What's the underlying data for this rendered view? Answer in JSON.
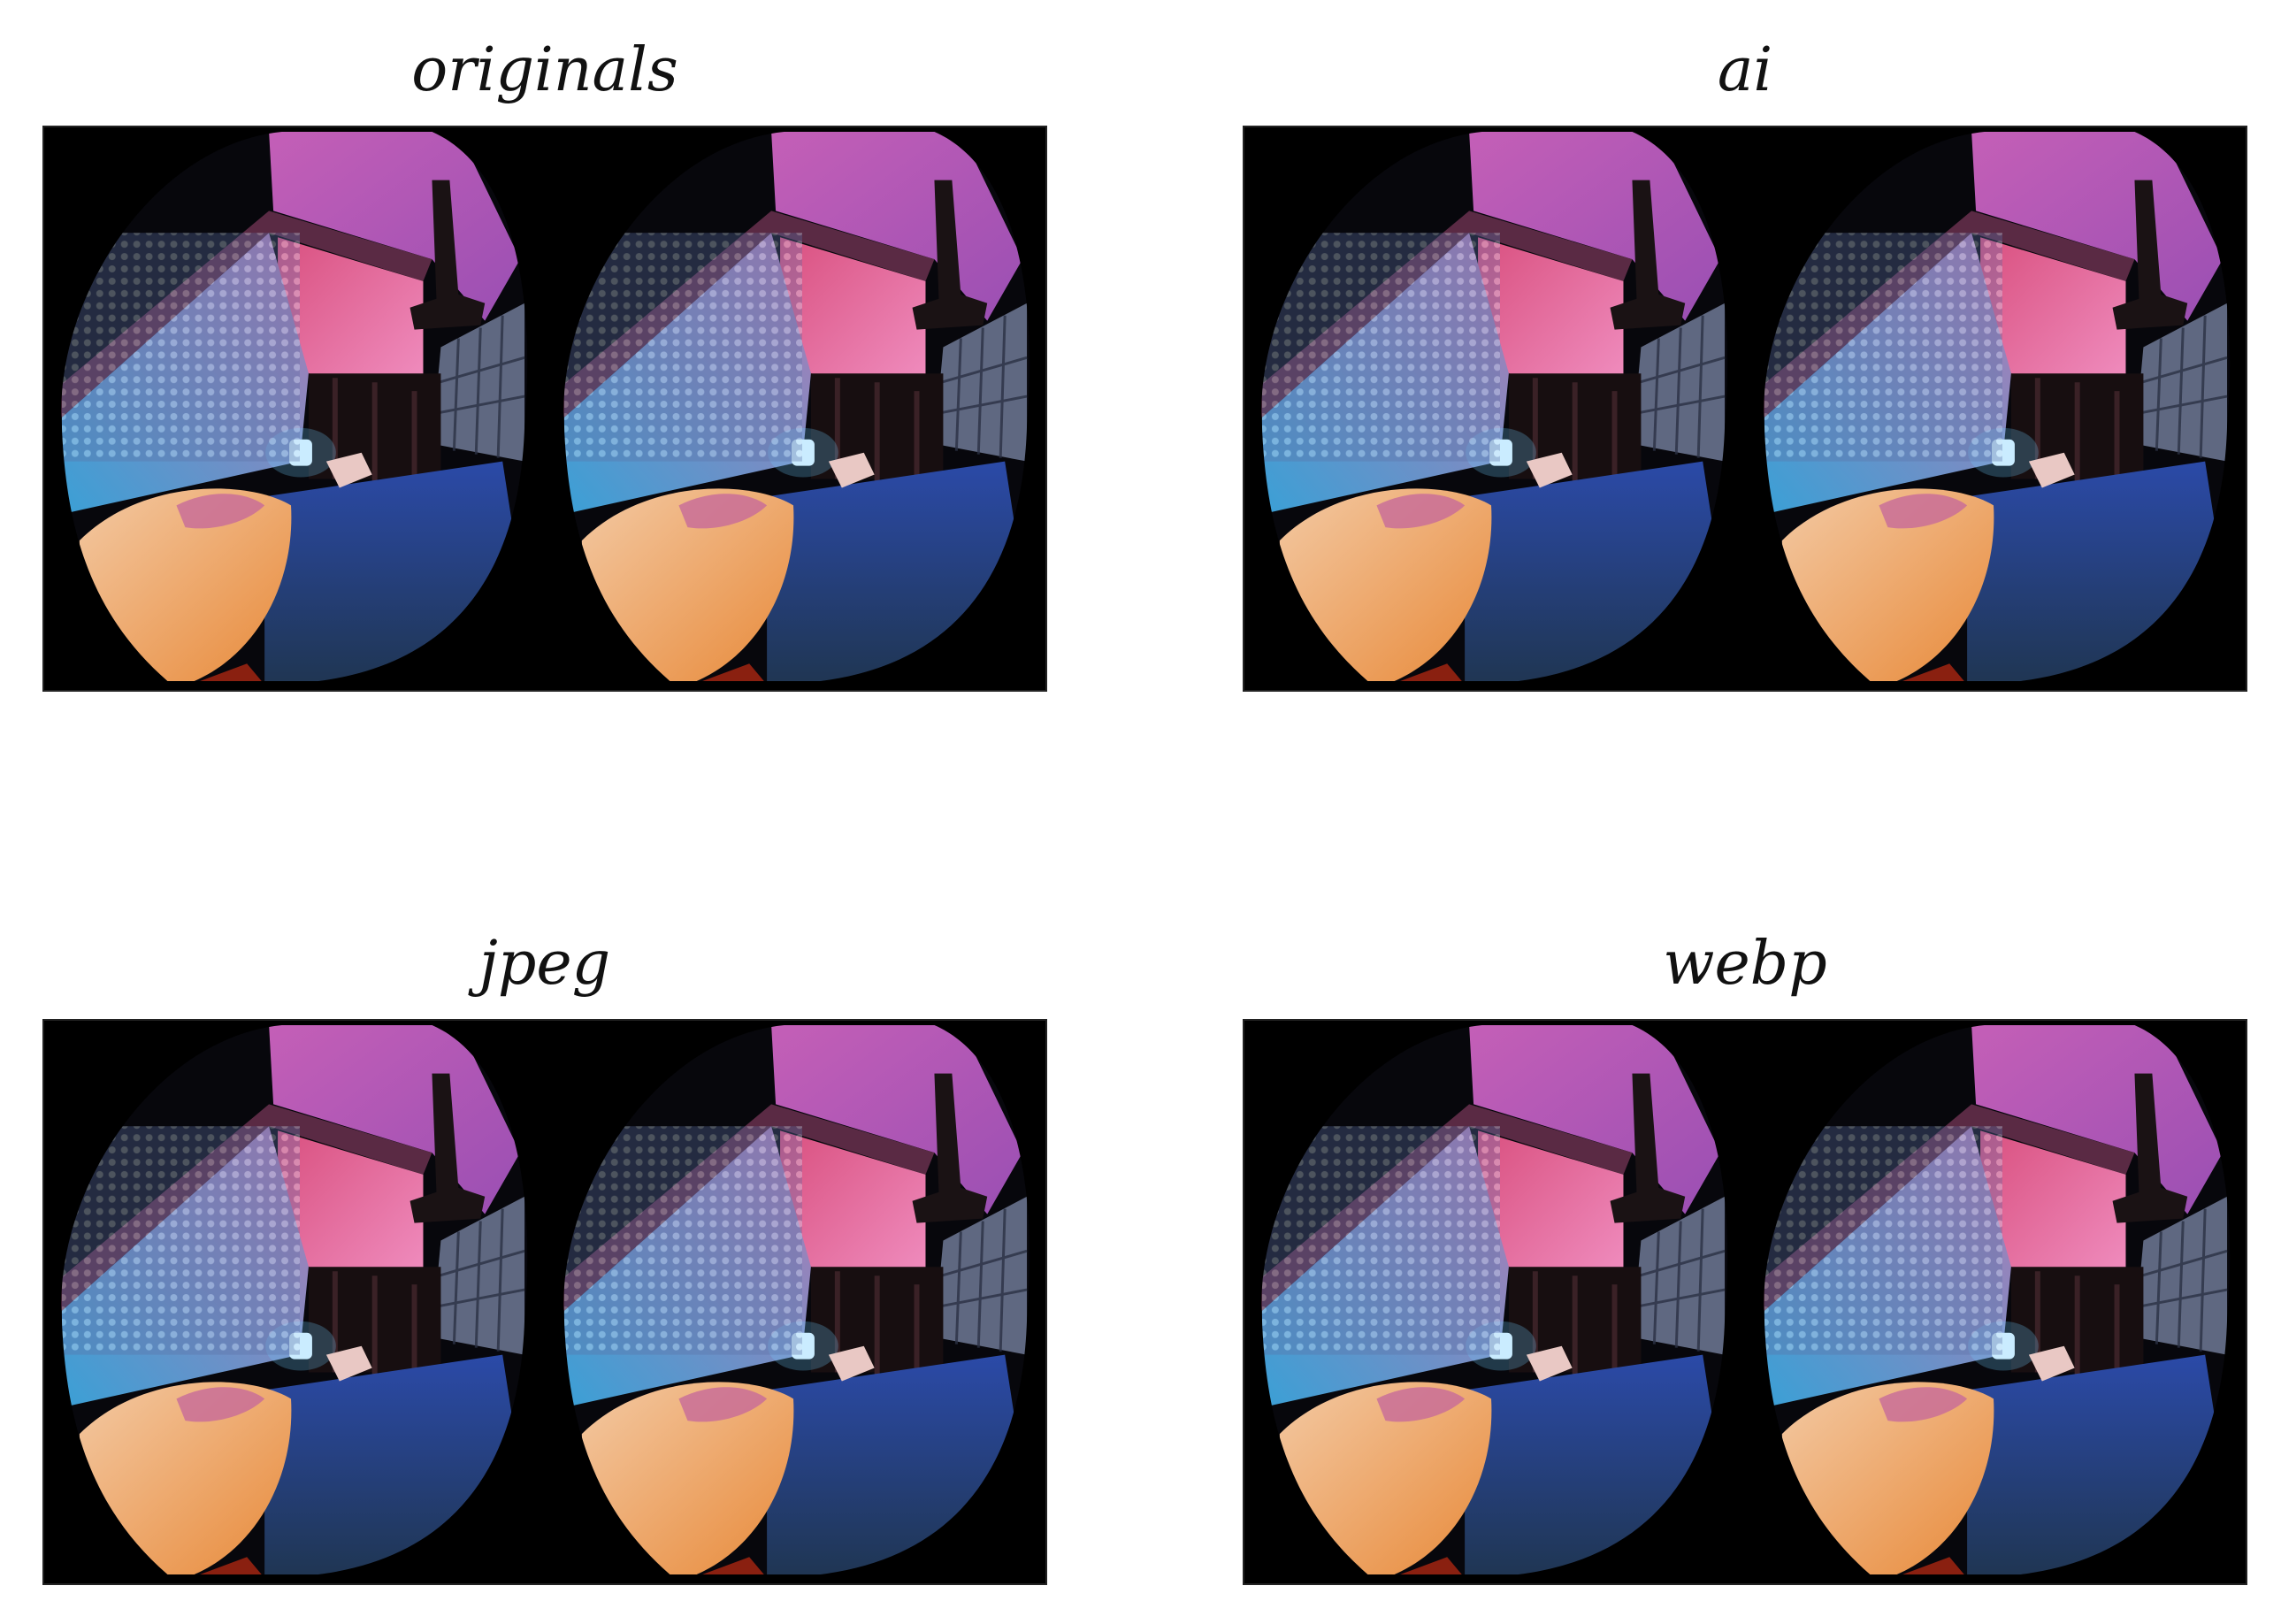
{
  "figure": {
    "panels": [
      {
        "id": "originals",
        "title": "originals"
      },
      {
        "id": "ai",
        "title": "ai"
      },
      {
        "id": "jpeg",
        "title": "jpeg"
      },
      {
        "id": "webp",
        "title": "webp"
      }
    ]
  },
  "colors": {
    "background": "#ffffff",
    "frame": "#000000",
    "ceiling": "#9a4fb3",
    "wall_pink": "#d9507f",
    "tile_blue": "#3aa0d6",
    "floor_blue": "#1f3550",
    "blanket_orange": "#e88a3a",
    "lamp_white": "#e8f6ff"
  }
}
